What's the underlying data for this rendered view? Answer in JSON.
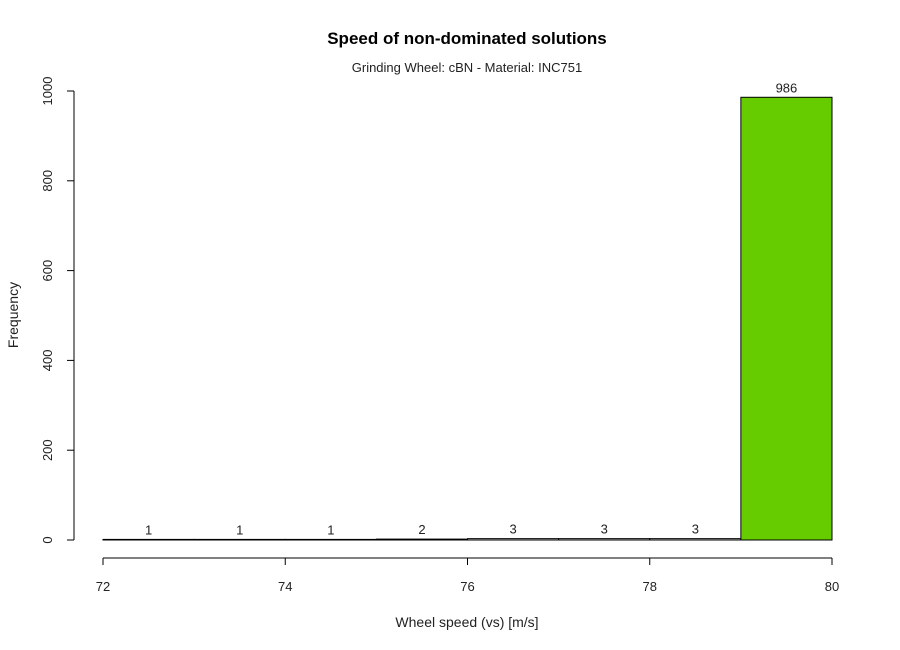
{
  "chart_data": {
    "type": "bar",
    "title": "Speed of non-dominated solutions",
    "subtitle": "Grinding Wheel: cBN - Material: INC751",
    "xlabel": "Wheel speed (vs) [m/s]",
    "ylabel": "Frequency",
    "bins": [
      {
        "start": 72,
        "end": 73,
        "value": 1,
        "label": "1"
      },
      {
        "start": 73,
        "end": 74,
        "value": 1,
        "label": "1"
      },
      {
        "start": 74,
        "end": 75,
        "value": 1,
        "label": "1"
      },
      {
        "start": 75,
        "end": 76,
        "value": 2,
        "label": "2"
      },
      {
        "start": 76,
        "end": 77,
        "value": 3,
        "label": "3"
      },
      {
        "start": 77,
        "end": 78,
        "value": 3,
        "label": "3"
      },
      {
        "start": 78,
        "end": 79,
        "value": 3,
        "label": "3"
      },
      {
        "start": 79,
        "end": 80,
        "value": 986,
        "label": "986"
      }
    ],
    "xlim": [
      72,
      80
    ],
    "ylim": [
      0,
      1000
    ],
    "xticks": [
      72,
      74,
      76,
      78,
      80
    ],
    "yticks": [
      0,
      200,
      400,
      600,
      800,
      1000
    ],
    "bar_fill": "#ffffff",
    "highlight_fill": "#66cc00",
    "highlight_bin": 7,
    "grid": false,
    "legend": "none"
  }
}
